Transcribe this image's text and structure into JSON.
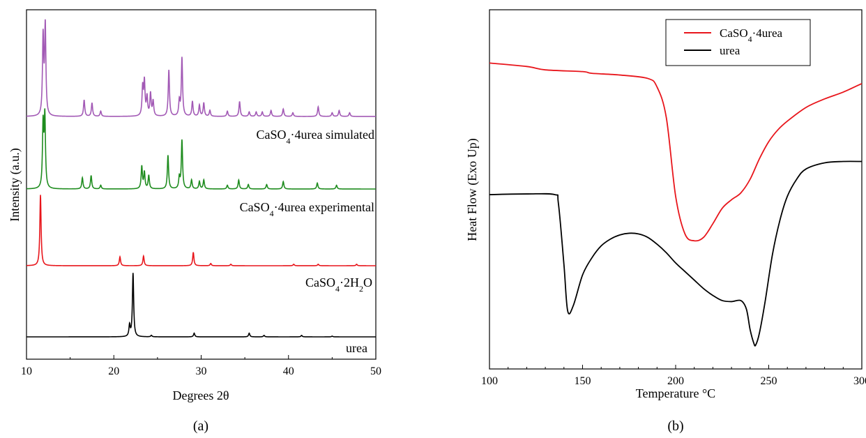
{
  "chart_data": [
    {
      "type": "line",
      "panel_label": "(a)",
      "xlabel": "Degrees 2θ",
      "ylabel": "Intensity (a.u.)",
      "xlim": [
        10,
        50
      ],
      "xticks": [
        10,
        20,
        30,
        40,
        50
      ],
      "yticks_shown": false,
      "grid": false,
      "series": [
        {
          "name": "CaSO4·4urea simulated",
          "label_parts": [
            "CaSO",
            "4",
            "·4urea simulated"
          ],
          "color": "#a259b5",
          "baseline": 3.0,
          "peaks": [
            [
              11.9,
              1.05
            ],
            [
              12.15,
              1.2
            ],
            [
              16.6,
              0.22
            ],
            [
              17.5,
              0.18
            ],
            [
              18.5,
              0.07
            ],
            [
              23.3,
              0.38
            ],
            [
              23.5,
              0.45
            ],
            [
              23.8,
              0.25
            ],
            [
              24.2,
              0.3
            ],
            [
              24.5,
              0.2
            ],
            [
              26.3,
              0.62
            ],
            [
              27.5,
              0.2
            ],
            [
              27.8,
              0.78
            ],
            [
              29.0,
              0.2
            ],
            [
              29.8,
              0.15
            ],
            [
              30.3,
              0.18
            ],
            [
              31.0,
              0.08
            ],
            [
              33.0,
              0.07
            ],
            [
              34.4,
              0.2
            ],
            [
              35.5,
              0.06
            ],
            [
              36.3,
              0.06
            ],
            [
              37.0,
              0.06
            ],
            [
              38.0,
              0.08
            ],
            [
              39.4,
              0.1
            ],
            [
              40.5,
              0.05
            ],
            [
              43.4,
              0.13
            ],
            [
              45.0,
              0.05
            ],
            [
              45.8,
              0.08
            ],
            [
              47.0,
              0.05
            ]
          ]
        },
        {
          "name": "CaSO4·4urea experimental",
          "label_parts": [
            "CaSO",
            "4",
            "·4urea experimental"
          ],
          "color": "#1e8c1e",
          "baseline": 2.0,
          "peaks": [
            [
              11.9,
              0.85
            ],
            [
              12.1,
              0.95
            ],
            [
              16.4,
              0.15
            ],
            [
              17.4,
              0.18
            ],
            [
              18.5,
              0.05
            ],
            [
              23.2,
              0.3
            ],
            [
              23.5,
              0.22
            ],
            [
              24.0,
              0.18
            ],
            [
              26.2,
              0.45
            ],
            [
              27.5,
              0.15
            ],
            [
              27.8,
              0.65
            ],
            [
              28.9,
              0.12
            ],
            [
              29.8,
              0.1
            ],
            [
              30.3,
              0.12
            ],
            [
              33.0,
              0.05
            ],
            [
              34.3,
              0.12
            ],
            [
              35.4,
              0.06
            ],
            [
              37.5,
              0.06
            ],
            [
              39.4,
              0.1
            ],
            [
              43.3,
              0.08
            ],
            [
              45.5,
              0.05
            ]
          ]
        },
        {
          "name": "CaSO4·2H2O",
          "label_parts": [
            "CaSO",
            "4",
            "·2H",
            "2",
            "O"
          ],
          "color": "#e8151b",
          "baseline": 1.0,
          "peaks": [
            [
              11.6,
              0.95
            ],
            [
              20.7,
              0.12
            ],
            [
              23.4,
              0.13
            ],
            [
              29.1,
              0.18
            ],
            [
              31.1,
              0.03
            ],
            [
              33.4,
              0.02
            ],
            [
              40.6,
              0.02
            ],
            [
              43.4,
              0.02
            ],
            [
              47.8,
              0.02
            ]
          ]
        },
        {
          "name": "urea",
          "label_parts": [
            "urea"
          ],
          "color": "#000000",
          "baseline": 0.0,
          "peaks": [
            [
              21.8,
              0.15
            ],
            [
              22.2,
              0.85
            ],
            [
              24.3,
              0.02
            ],
            [
              29.2,
              0.05
            ],
            [
              35.5,
              0.05
            ],
            [
              37.2,
              0.02
            ],
            [
              41.5,
              0.02
            ],
            [
              45.0,
              0.01
            ]
          ]
        }
      ]
    },
    {
      "type": "line",
      "panel_label": "(b)",
      "xlabel": "Temperature °C",
      "ylabel": "Heat Flow (Exo Up)",
      "xlim": [
        100,
        300
      ],
      "xticks": [
        100,
        150,
        200,
        250,
        300
      ],
      "yticks_shown": false,
      "grid": false,
      "legend_position": "top-right",
      "series": [
        {
          "name": "CaSO4·4urea",
          "label_parts": [
            "CaSO",
            "4",
            "·4urea"
          ],
          "color": "#e8151b",
          "points": [
            [
              100,
              8.4
            ],
            [
              120,
              8.3
            ],
            [
              130,
              8.2
            ],
            [
              150,
              8.15
            ],
            [
              155,
              8.1
            ],
            [
              170,
              8.05
            ],
            [
              185,
              7.95
            ],
            [
              190,
              7.7
            ],
            [
              195,
              6.8
            ],
            [
              200,
              4.5
            ],
            [
              205,
              3.4
            ],
            [
              210,
              3.2
            ],
            [
              215,
              3.3
            ],
            [
              220,
              3.7
            ],
            [
              225,
              4.15
            ],
            [
              230,
              4.4
            ],
            [
              235,
              4.6
            ],
            [
              240,
              5.0
            ],
            [
              245,
              5.6
            ],
            [
              250,
              6.1
            ],
            [
              255,
              6.45
            ],
            [
              260,
              6.7
            ],
            [
              270,
              7.1
            ],
            [
              280,
              7.35
            ],
            [
              290,
              7.55
            ],
            [
              300,
              7.8
            ]
          ]
        },
        {
          "name": "urea",
          "label_parts": [
            "urea"
          ],
          "color": "#000000",
          "points": [
            [
              100,
              4.55
            ],
            [
              120,
              4.57
            ],
            [
              135,
              4.55
            ],
            [
              137,
              4.3
            ],
            [
              140,
              2.5
            ],
            [
              142,
              1.15
            ],
            [
              145,
              1.3
            ],
            [
              150,
              2.2
            ],
            [
              155,
              2.7
            ],
            [
              160,
              3.05
            ],
            [
              165,
              3.25
            ],
            [
              170,
              3.37
            ],
            [
              175,
              3.42
            ],
            [
              180,
              3.4
            ],
            [
              185,
              3.3
            ],
            [
              190,
              3.1
            ],
            [
              195,
              2.85
            ],
            [
              200,
              2.55
            ],
            [
              205,
              2.3
            ],
            [
              210,
              2.05
            ],
            [
              215,
              1.8
            ],
            [
              220,
              1.6
            ],
            [
              225,
              1.45
            ],
            [
              230,
              1.42
            ],
            [
              235,
              1.45
            ],
            [
              238,
              1.2
            ],
            [
              240,
              0.6
            ],
            [
              242,
              0.2
            ],
            [
              243,
              0.15
            ],
            [
              245,
              0.5
            ],
            [
              248,
              1.4
            ],
            [
              252,
              2.8
            ],
            [
              256,
              3.8
            ],
            [
              260,
              4.5
            ],
            [
              265,
              5.0
            ],
            [
              270,
              5.3
            ],
            [
              280,
              5.48
            ],
            [
              290,
              5.52
            ],
            [
              300,
              5.52
            ]
          ]
        }
      ]
    }
  ]
}
